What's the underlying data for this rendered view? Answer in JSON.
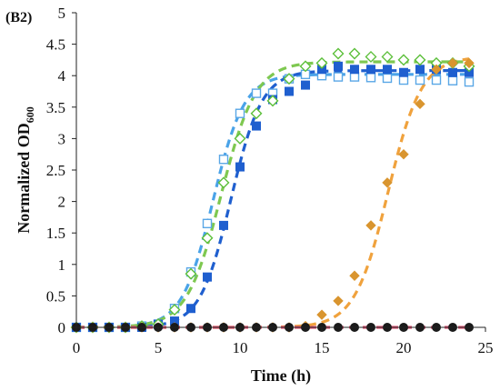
{
  "chart_data": {
    "type": "scatter",
    "panel_label": "(B2)",
    "title": "",
    "xlabel": "Time (h)",
    "ylabel_main": "Normalized OD",
    "ylabel_sub": "600",
    "xlim": [
      0,
      25
    ],
    "ylim": [
      0,
      5
    ],
    "x_ticks": [
      "0",
      "5",
      "10",
      "15",
      "20",
      "25"
    ],
    "y_ticks": [
      "0",
      "0.5",
      "1",
      "1.5",
      "2",
      "2.5",
      "3",
      "3.5",
      "4",
      "4.5",
      "5"
    ],
    "grid": false,
    "legend": "none",
    "series": [
      {
        "marker": "square-open",
        "color": "#5aa7e6",
        "fit_color": "#4aa3e8",
        "x": [
          0,
          1,
          2,
          3,
          4,
          5,
          6,
          7,
          8,
          9,
          10,
          11,
          12,
          13,
          14,
          15,
          16,
          17,
          18,
          19,
          20,
          21,
          22,
          23,
          24
        ],
        "y": [
          0,
          0,
          0,
          0,
          0.02,
          0.05,
          0.3,
          0.88,
          1.65,
          2.67,
          3.4,
          3.72,
          3.72,
          3.95,
          4.02,
          4.0,
          3.98,
          3.98,
          3.97,
          3.96,
          3.93,
          3.93,
          3.93,
          3.92,
          3.9
        ],
        "fit": {
          "K": 4.02,
          "r": 1.05,
          "t0": 8.35
        }
      },
      {
        "marker": "square-filled",
        "color": "#1f5fcf",
        "fit_color": "#1f5fcf",
        "x": [
          0,
          1,
          2,
          3,
          4,
          5,
          6,
          7,
          8,
          9,
          10,
          11,
          12,
          13,
          14,
          15,
          16,
          17,
          18,
          19,
          20,
          21,
          22,
          23,
          24
        ],
        "y": [
          0,
          0,
          0,
          0,
          0,
          0.05,
          0.1,
          0.3,
          0.8,
          1.62,
          2.55,
          3.2,
          3.62,
          3.75,
          3.85,
          4.1,
          4.15,
          4.1,
          4.1,
          4.1,
          4.05,
          4.1,
          4.1,
          4.05,
          4.05
        ],
        "fit": {
          "K": 4.08,
          "r": 1.05,
          "t0": 9.45
        }
      },
      {
        "marker": "diamond-open",
        "color": "#5cbf3a",
        "fit_color": "#7ec850",
        "x": [
          0,
          1,
          2,
          3,
          4,
          5,
          6,
          7,
          8,
          9,
          10,
          11,
          12,
          13,
          14,
          15,
          16,
          17,
          18,
          19,
          20,
          21,
          22,
          23,
          24
        ],
        "y": [
          0,
          0,
          0,
          0,
          0.02,
          0.05,
          0.28,
          0.85,
          1.42,
          2.3,
          3.0,
          3.4,
          3.6,
          3.95,
          4.15,
          4.2,
          4.35,
          4.35,
          4.3,
          4.3,
          4.25,
          4.25,
          4.2,
          4.2,
          4.15
        ],
        "fit": {
          "K": 4.22,
          "r": 0.95,
          "t0": 8.85
        }
      },
      {
        "marker": "diamond-filled",
        "color": "#d9952f",
        "fit_color": "#f0a23d",
        "x": [
          0,
          1,
          2,
          3,
          4,
          5,
          6,
          7,
          8,
          9,
          10,
          11,
          12,
          13,
          14,
          15,
          16,
          17,
          18,
          19,
          20,
          21,
          22,
          23,
          24
        ],
        "y": [
          0,
          0,
          0,
          0,
          0,
          0,
          0,
          0,
          0,
          0,
          0,
          0,
          0,
          0,
          0.02,
          0.2,
          0.42,
          0.82,
          1.62,
          2.3,
          2.75,
          3.55,
          4.1,
          4.2,
          4.2
        ],
        "fit": {
          "K": 4.3,
          "r": 0.98,
          "t0": 19.05
        }
      },
      {
        "marker": "circle-filled",
        "color": "#1a1a1a",
        "fit_color": "#e05a7a",
        "x": [
          0,
          1,
          2,
          3,
          4,
          5,
          6,
          7,
          8,
          9,
          10,
          11,
          12,
          13,
          14,
          15,
          16,
          17,
          18,
          19,
          20,
          21,
          22,
          23,
          24
        ],
        "y": [
          0,
          0,
          0,
          0,
          0,
          0,
          0,
          0,
          0,
          0,
          0,
          0,
          0,
          0,
          0,
          0,
          0,
          0,
          0,
          0,
          0,
          0,
          0,
          0,
          0
        ],
        "fit": {
          "K": 0,
          "r": 1,
          "t0": 100
        }
      }
    ]
  }
}
